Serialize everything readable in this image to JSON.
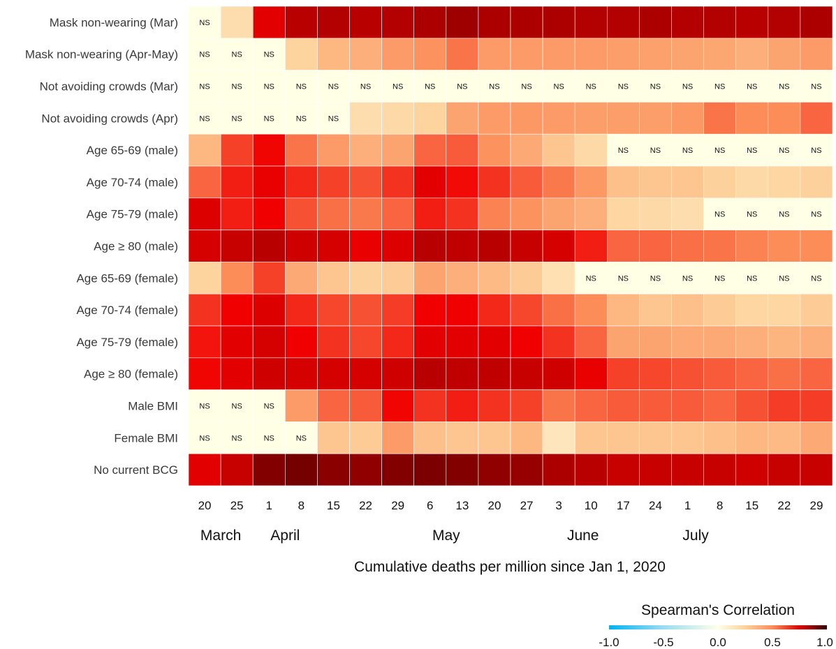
{
  "chart_data": {
    "type": "heatmap",
    "xlabel": "Cumulative deaths per million since Jan 1, 2020",
    "x_ticks": [
      "20",
      "25",
      "1",
      "8",
      "15",
      "22",
      "29",
      "6",
      "13",
      "20",
      "27",
      "3",
      "10",
      "17",
      "24",
      "1",
      "8",
      "15",
      "22",
      "29"
    ],
    "months": [
      {
        "label": "March",
        "col": 0.5
      },
      {
        "label": "April",
        "col": 2.5
      },
      {
        "label": "May",
        "col": 7.5
      },
      {
        "label": "June",
        "col": 11.75
      },
      {
        "label": "July",
        "col": 15.25
      }
    ],
    "rows": [
      "Mask non-wearing (Mar)",
      "Mask non-wearing (Apr-May)",
      "Not avoiding crowds (Mar)",
      "Not avoiding crowds (Apr)",
      "Age 65-69 (male)",
      "Age 70-74 (male)",
      "Age 75-79 (male)",
      "Age ≥ 80 (male)",
      "Age 65-69 (female)",
      "Age 70-74 (female)",
      "Age 75-79 (female)",
      "Age ≥ 80 (female)",
      "Male BMI",
      "Female BMI",
      "No current BCG"
    ],
    "ns_label": "NS",
    "values": [
      [
        null,
        0.2,
        0.8,
        0.86,
        0.87,
        0.86,
        0.87,
        0.88,
        0.9,
        0.88,
        0.88,
        0.88,
        0.87,
        0.87,
        0.88,
        0.87,
        0.87,
        0.86,
        0.87,
        0.88
      ],
      [
        null,
        null,
        null,
        0.25,
        0.35,
        0.38,
        0.45,
        0.48,
        0.55,
        0.45,
        0.45,
        0.45,
        0.45,
        0.44,
        0.43,
        0.42,
        0.41,
        0.38,
        0.42,
        0.45
      ],
      [
        null,
        null,
        null,
        null,
        null,
        null,
        null,
        null,
        null,
        null,
        null,
        null,
        null,
        null,
        null,
        null,
        null,
        null,
        null,
        null
      ],
      [
        null,
        null,
        null,
        null,
        null,
        0.2,
        0.22,
        0.25,
        0.42,
        0.45,
        0.46,
        0.45,
        0.44,
        0.44,
        0.44,
        0.46,
        0.55,
        0.5,
        0.5,
        0.58
      ],
      [
        0.35,
        0.65,
        0.77,
        0.55,
        0.45,
        0.38,
        0.42,
        0.58,
        0.6,
        0.48,
        0.4,
        0.3,
        0.22,
        null,
        null,
        null,
        null,
        null,
        null,
        null
      ],
      [
        0.58,
        0.72,
        0.79,
        0.7,
        0.65,
        0.62,
        0.68,
        0.8,
        0.76,
        0.68,
        0.6,
        0.54,
        0.46,
        0.32,
        0.3,
        0.3,
        0.26,
        0.22,
        0.24,
        0.26
      ],
      [
        0.81,
        0.72,
        0.78,
        0.62,
        0.56,
        0.54,
        0.58,
        0.72,
        0.68,
        0.52,
        0.48,
        0.42,
        0.38,
        0.24,
        0.22,
        0.2,
        null,
        null,
        null,
        null
      ],
      [
        0.82,
        0.84,
        0.86,
        0.83,
        0.82,
        0.79,
        0.81,
        0.86,
        0.85,
        0.86,
        0.84,
        0.82,
        0.72,
        0.58,
        0.58,
        0.56,
        0.55,
        0.52,
        0.5,
        0.5
      ],
      [
        0.25,
        0.5,
        0.65,
        0.4,
        0.3,
        0.26,
        0.28,
        0.42,
        0.38,
        0.34,
        0.28,
        0.18,
        null,
        null,
        null,
        null,
        null,
        null,
        null,
        null
      ],
      [
        0.68,
        0.78,
        0.81,
        0.7,
        0.64,
        0.62,
        0.66,
        0.78,
        0.78,
        0.7,
        0.64,
        0.56,
        0.5,
        0.35,
        0.3,
        0.32,
        0.28,
        0.24,
        0.24,
        0.28
      ],
      [
        0.74,
        0.8,
        0.82,
        0.78,
        0.68,
        0.64,
        0.7,
        0.8,
        0.8,
        0.8,
        0.78,
        0.68,
        0.58,
        0.42,
        0.42,
        0.4,
        0.4,
        0.38,
        0.36,
        0.38
      ],
      [
        0.77,
        0.8,
        0.83,
        0.82,
        0.82,
        0.82,
        0.83,
        0.86,
        0.85,
        0.85,
        0.84,
        0.83,
        0.79,
        0.65,
        0.64,
        0.62,
        0.6,
        0.58,
        0.56,
        0.58
      ],
      [
        null,
        null,
        null,
        0.45,
        0.58,
        0.6,
        0.77,
        0.68,
        0.72,
        0.68,
        0.65,
        0.55,
        0.58,
        0.6,
        0.6,
        0.6,
        0.58,
        0.62,
        0.66,
        0.66
      ],
      [
        null,
        null,
        null,
        null,
        0.3,
        0.28,
        0.45,
        0.32,
        0.3,
        0.3,
        0.35,
        0.15,
        0.3,
        0.3,
        0.3,
        0.3,
        0.32,
        0.35,
        0.34,
        0.4
      ],
      [
        0.8,
        0.84,
        0.94,
        0.96,
        0.93,
        0.92,
        0.94,
        0.95,
        0.94,
        0.92,
        0.91,
        0.88,
        0.86,
        0.84,
        0.84,
        0.84,
        0.84,
        0.83,
        0.84,
        0.84
      ]
    ],
    "legend": {
      "title": "Spearman's Correlation",
      "ticks": [
        "-1.0",
        "-0.5",
        "0.0",
        "0.5",
        "1.0"
      ],
      "range": [
        -1,
        1
      ]
    },
    "colors": {
      "negative_end": "#00b3f0",
      "zero": "#ffffe8",
      "low_positive": "#fdd49e",
      "mid_positive": "#fc8d59",
      "high_positive": "#f00000",
      "positive_end": "#5a0000",
      "ns_cell": "#ffffe6",
      "grid": "#ffffff"
    }
  }
}
